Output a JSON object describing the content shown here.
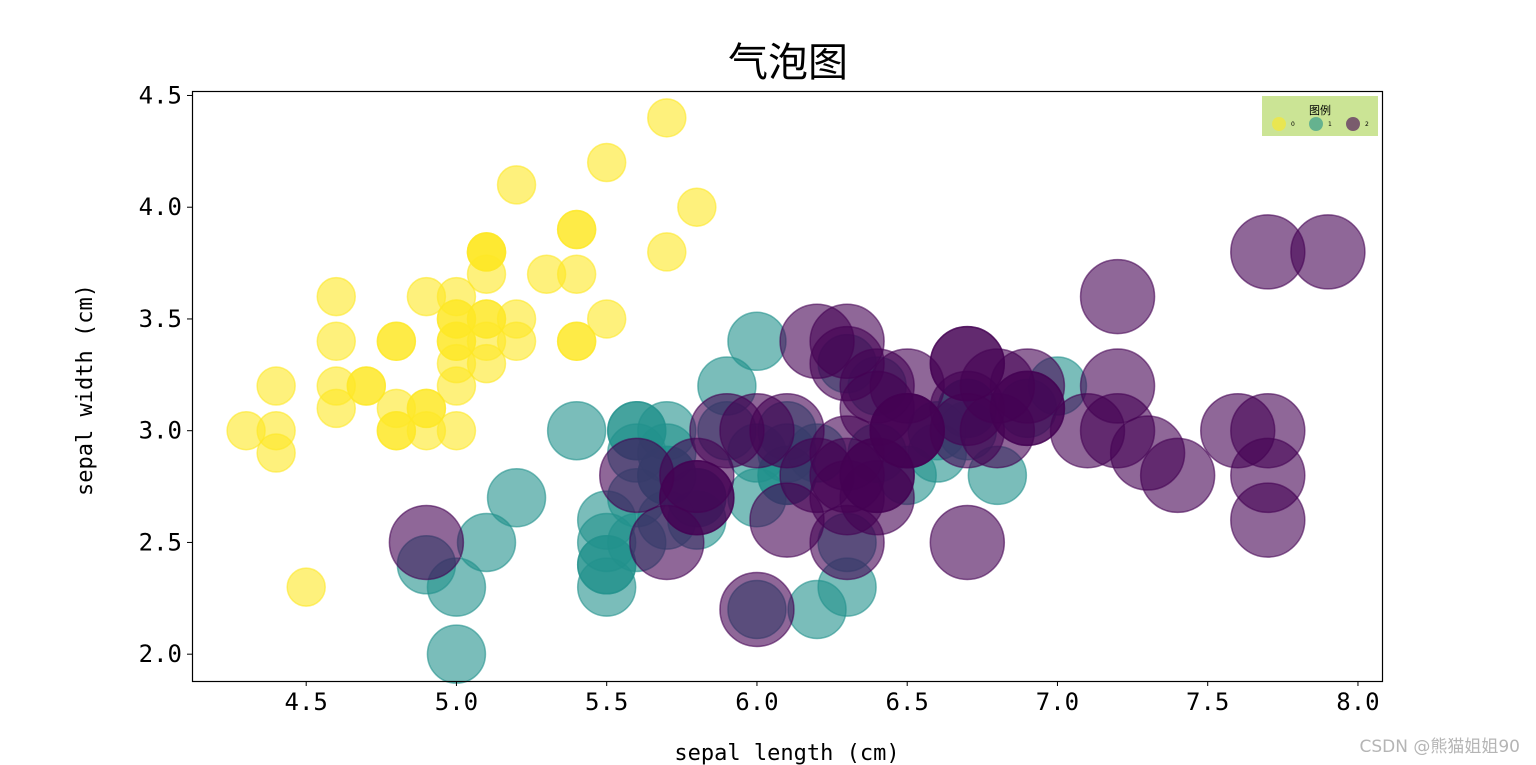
{
  "chart_data": {
    "type": "scatter",
    "subtype": "bubble",
    "title": "气泡图",
    "xlabel": "sepal length (cm)",
    "ylabel": "sepal width (cm)",
    "xlim": [
      4.12,
      8.08
    ],
    "ylim": [
      1.88,
      4.52
    ],
    "xticks": [
      "4.5",
      "5.0",
      "5.5",
      "6.0",
      "6.5",
      "7.0",
      "7.5",
      "8.0"
    ],
    "yticks": [
      "2.0",
      "2.5",
      "3.0",
      "3.5",
      "4.0",
      "4.5"
    ],
    "grid": false,
    "legend": {
      "title": "图例",
      "position": "upper right",
      "background": "#cbe495",
      "entries": [
        "0",
        "1",
        "2"
      ]
    },
    "series": [
      {
        "name": "0",
        "color": "#fde725",
        "radius": 19,
        "x": [
          5.1,
          4.9,
          4.7,
          4.6,
          5.0,
          5.4,
          4.6,
          5.0,
          4.4,
          4.9,
          5.4,
          4.8,
          4.8,
          4.3,
          5.8,
          5.7,
          5.4,
          5.1,
          5.7,
          5.1,
          5.4,
          5.1,
          4.6,
          5.1,
          4.8,
          5.0,
          5.0,
          5.2,
          5.2,
          4.7,
          4.8,
          5.4,
          5.2,
          5.5,
          4.9,
          5.0,
          5.5,
          4.9,
          4.4,
          5.1,
          5.0,
          4.5,
          4.4,
          5.0,
          5.1,
          4.8,
          5.1,
          4.6,
          5.3,
          5.0
        ],
        "y": [
          3.5,
          3.0,
          3.2,
          3.1,
          3.6,
          3.9,
          3.4,
          3.4,
          2.9,
          3.1,
          3.7,
          3.4,
          3.0,
          3.0,
          4.0,
          4.4,
          3.9,
          3.5,
          3.8,
          3.8,
          3.4,
          3.7,
          3.6,
          3.3,
          3.4,
          3.0,
          3.4,
          3.5,
          3.4,
          3.2,
          3.1,
          3.4,
          4.1,
          4.2,
          3.1,
          3.2,
          3.5,
          3.6,
          3.0,
          3.4,
          3.5,
          2.3,
          3.2,
          3.5,
          3.8,
          3.0,
          3.8,
          3.2,
          3.7,
          3.3
        ]
      },
      {
        "name": "1",
        "color": "#21918c",
        "radius": 29,
        "x": [
          7.0,
          6.4,
          6.9,
          5.5,
          6.5,
          5.7,
          6.3,
          4.9,
          6.6,
          5.2,
          5.0,
          5.9,
          6.0,
          6.1,
          5.6,
          6.7,
          5.6,
          5.8,
          6.2,
          5.6,
          5.9,
          6.1,
          6.3,
          6.1,
          6.4,
          6.6,
          6.8,
          6.7,
          6.0,
          5.7,
          5.5,
          5.5,
          5.8,
          6.0,
          5.4,
          6.0,
          6.7,
          6.3,
          5.6,
          5.5,
          5.5,
          6.1,
          5.8,
          5.0,
          5.6,
          5.7,
          5.7,
          6.2,
          5.1,
          5.7
        ],
        "y": [
          3.2,
          3.2,
          3.1,
          2.3,
          2.8,
          2.8,
          3.3,
          2.4,
          2.9,
          2.7,
          2.0,
          3.0,
          2.2,
          2.9,
          2.9,
          3.1,
          3.0,
          2.7,
          2.2,
          2.5,
          3.2,
          2.8,
          2.5,
          2.8,
          2.9,
          3.0,
          2.8,
          3.0,
          2.9,
          2.6,
          2.4,
          2.4,
          2.7,
          2.7,
          3.0,
          3.4,
          3.1,
          2.3,
          3.0,
          2.5,
          2.6,
          3.0,
          2.6,
          2.3,
          2.7,
          3.0,
          2.9,
          2.9,
          2.5,
          2.8
        ]
      },
      {
        "name": "2",
        "color": "#440154",
        "radius": 37,
        "x": [
          6.3,
          5.8,
          7.1,
          6.3,
          6.5,
          7.6,
          4.9,
          7.3,
          6.7,
          7.2,
          6.5,
          6.4,
          6.8,
          5.7,
          5.8,
          6.4,
          6.5,
          7.7,
          7.7,
          6.0,
          6.9,
          5.6,
          7.7,
          6.3,
          6.7,
          7.2,
          6.2,
          6.1,
          6.4,
          7.2,
          7.4,
          7.9,
          6.4,
          6.3,
          6.1,
          7.7,
          6.3,
          6.4,
          6.0,
          6.9,
          6.7,
          6.9,
          5.8,
          6.8,
          6.7,
          6.7,
          6.3,
          6.5,
          6.2,
          5.9
        ],
        "y": [
          3.3,
          2.7,
          3.0,
          2.9,
          3.0,
          3.0,
          2.5,
          2.9,
          2.5,
          3.6,
          3.2,
          2.7,
          3.0,
          2.5,
          2.8,
          3.2,
          3.0,
          3.8,
          2.6,
          2.2,
          3.2,
          2.8,
          2.8,
          2.7,
          3.3,
          3.2,
          2.8,
          3.0,
          2.8,
          3.0,
          2.8,
          3.8,
          2.8,
          2.8,
          2.6,
          3.0,
          3.4,
          3.1,
          3.0,
          3.1,
          3.1,
          3.1,
          2.7,
          3.2,
          3.3,
          3.0,
          2.5,
          3.0,
          3.4,
          3.0
        ]
      }
    ]
  },
  "watermark": "CSDN @熊猫姐姐90"
}
